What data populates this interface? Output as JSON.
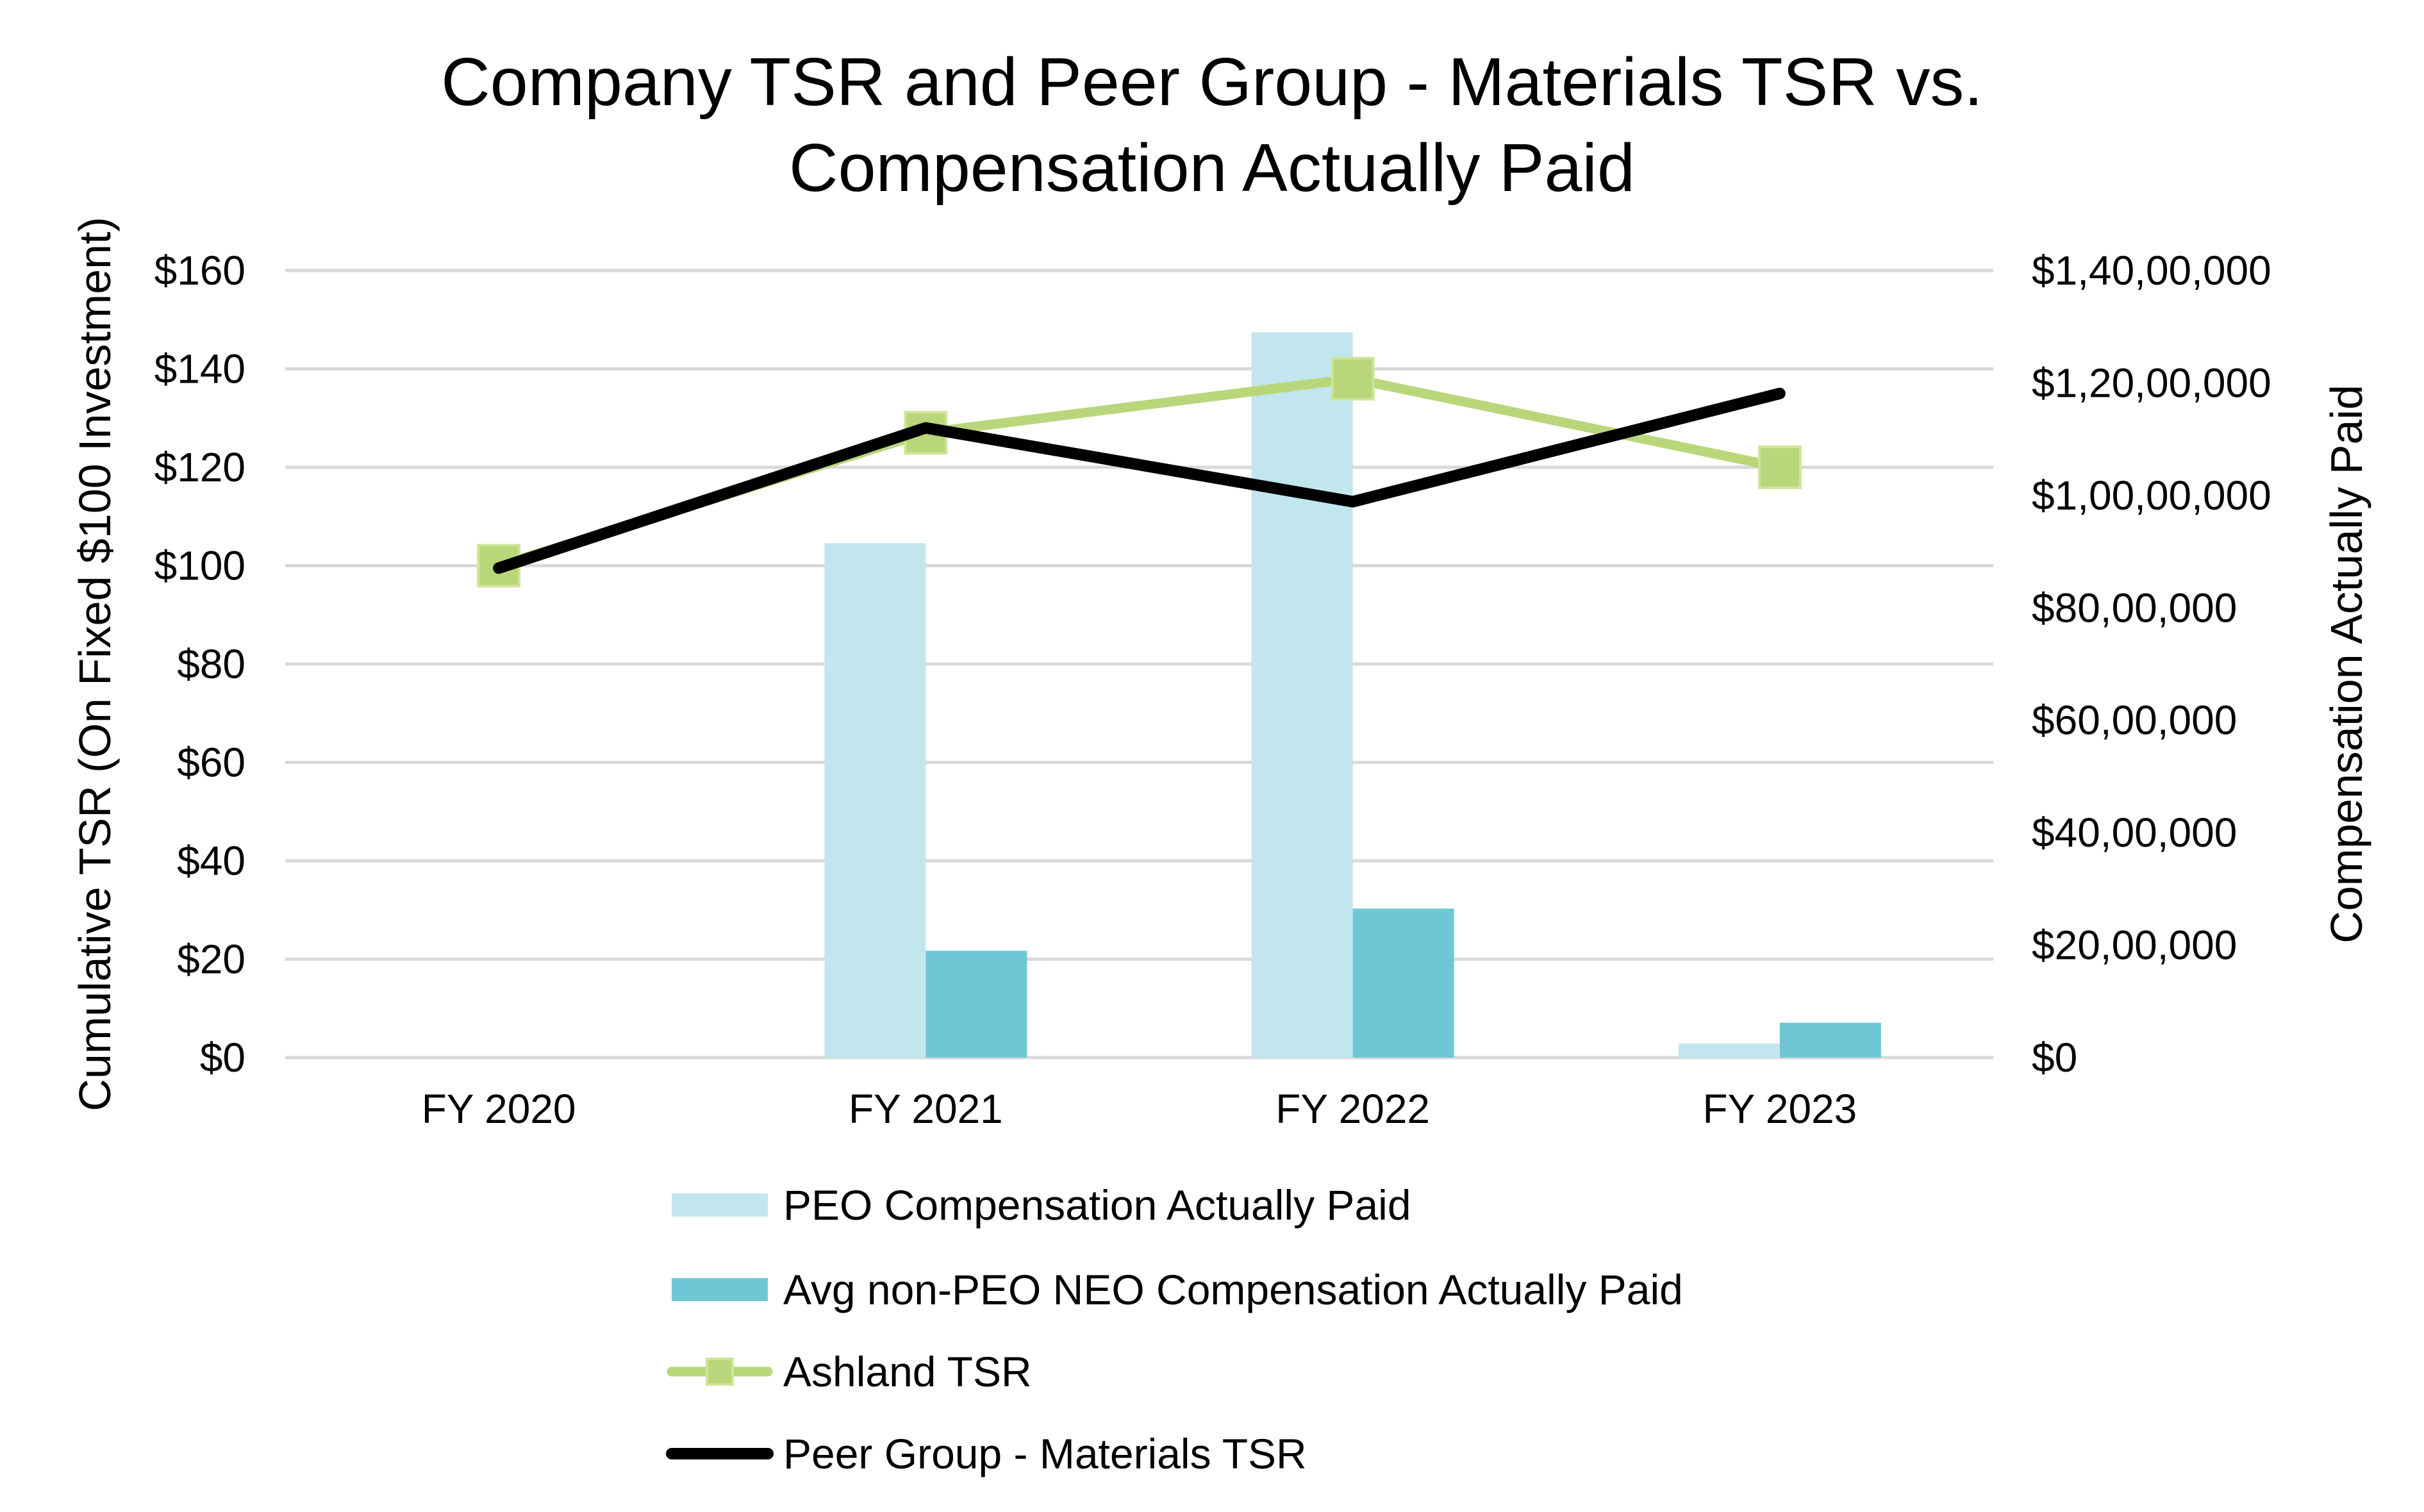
{
  "chart_data": {
    "type": "bar+line",
    "title": "Company TSR and Peer Group - Materials TSR vs. Compensation Actually Paid",
    "title_lines": [
      "Company TSR and Peer Group - Materials TSR vs.",
      "Compensation Actually Paid"
    ],
    "categories": [
      "FY 2020",
      "FY 2021",
      "FY 2022",
      "FY 2023"
    ],
    "ylabel_left": "Cumulative TSR (On Fixed $100 Investment)",
    "ylabel_right": "Compensation Actually Paid",
    "ylim_left": [
      0,
      160
    ],
    "ylim_right": [
      0,
      14000000
    ],
    "left_ticks": [
      "$0",
      "$20",
      "$40",
      "$60",
      "$80",
      "$100",
      "$120",
      "$140",
      "$160"
    ],
    "right_ticks": [
      "$0",
      "$20,00,000",
      "$40,00,000",
      "$60,00,000",
      "$80,00,000",
      "$1,00,00,000",
      "$1,20,00,000",
      "$1,40,00,000"
    ],
    "grid": true,
    "legend_position": "bottom",
    "series": [
      {
        "name": "PEO Compensation Actually Paid",
        "kind": "bar",
        "axis": "right",
        "color": "#c2e6ee",
        "values": [
          0,
          9150000,
          12900000,
          250000
        ]
      },
      {
        "name": "Avg non-PEO NEO Compensation Actually Paid",
        "kind": "bar",
        "axis": "right",
        "color": "#6fc7d6",
        "values": [
          0,
          1900000,
          2650000,
          620000
        ]
      },
      {
        "name": "Ashland TSR",
        "kind": "line",
        "axis": "left",
        "marker": "square",
        "color": "#b9d77a",
        "marker_color": "#b9d77a",
        "values": [
          100,
          127,
          138,
          120
        ]
      },
      {
        "name": "Peer Group - Materials TSR",
        "kind": "line",
        "axis": "left",
        "color": "#000000",
        "values": [
          99.5,
          128,
          113,
          135
        ]
      }
    ]
  }
}
